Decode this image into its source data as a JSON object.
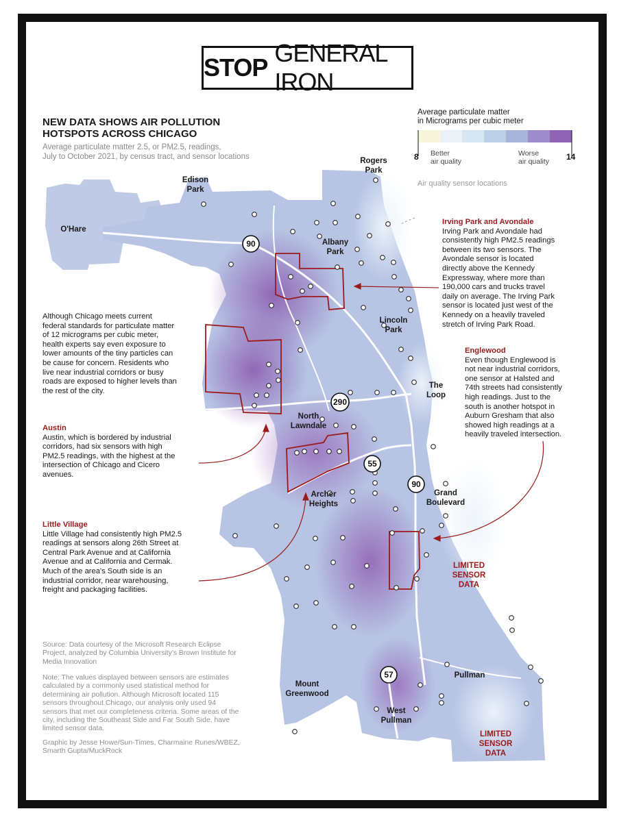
{
  "banner": {
    "bold": "STOP",
    "rest": "GENERAL IRON"
  },
  "headline": {
    "line1": "NEW DATA SHOWS AIR POLLUTION",
    "line2": "HOTSPOTS ACROSS CHICAGO"
  },
  "subhead": {
    "line1": "Average particulate matter 2.5, or PM2.5, readings,",
    "line2": "July to October 2021, by census tract, and sensor locations"
  },
  "legend": {
    "title1": "Average particulate matter",
    "title2": "in Micrograms per cubic meter",
    "min": "8",
    "max": "14",
    "better1": "Better",
    "better2": "air quality",
    "worse1": "Worse",
    "worse2": "air quality",
    "colors": [
      "#f7f6dd",
      "#eaf2f8",
      "#d6e6f2",
      "#bccfe8",
      "#a8b4dc",
      "#9d8bcc",
      "#8f64b4"
    ],
    "sensor_label": "Air quality sensor locations"
  },
  "places": {
    "rogers1": "Rogers",
    "rogers2": "Park",
    "edison1": "Edison",
    "edison2": "Park",
    "ohare": "O'Hare",
    "albany1": "Albany",
    "albany2": "Park",
    "lincoln1": "Lincoln",
    "lincoln2": "Park",
    "loop1": "The",
    "loop2": "Loop",
    "northlawndale1": "North",
    "northlawndale2": "Lawndale",
    "archer1": "Archer",
    "archer2": "Heights",
    "grand1": "Grand",
    "grand2": "Boulevard",
    "mountg1": "Mount",
    "mountg2": "Greenwood",
    "pullman": "Pullman",
    "westp1": "West",
    "westp2": "Pullman",
    "limited_a1": "LIMITED",
    "limited_a2": "SENSOR",
    "limited_a3": "DATA",
    "limited_b1": "LIMITED",
    "limited_b2": "SENSOR",
    "limited_b3": "DATA"
  },
  "highways": {
    "i90_north": "90",
    "i290": "290",
    "i55": "55",
    "i90_south": "90",
    "i57": "57"
  },
  "intro_text": [
    "Although Chicago meets current",
    "federal standards for particulate matter",
    "of 12 micrograms per cubic meter,",
    "health experts say even exposure to",
    "lower amounts of the tiny particles can",
    "be cause for concern. Residents who",
    "live near industrial corridors or busy",
    "roads are exposed to higher levels than",
    "the rest of the city."
  ],
  "austin": {
    "title": "Austin",
    "lines": [
      "Austin, which is bordered by industrial",
      "corridors, had six sensors with high",
      "PM2.5 readings, with the highest at the",
      "intersection of Chicago and Cicero",
      "avenues."
    ]
  },
  "little_village": {
    "title": "Little Village",
    "lines": [
      "Little Village had consistently high PM2.5",
      "readings at sensors along 26th Street at",
      "Central Park Avenue and at California",
      "Avenue and at California and Cermak.",
      "Much of the area's South side is an",
      "industrial corridor, near warehousing,",
      "freight and packaging facilities."
    ]
  },
  "irving": {
    "title": "Irving Park and Avondale",
    "lines": [
      "Irving Park and Avondale had",
      "consistently high PM2.5 readings",
      "between its two sensors. The",
      "Avondale sensor is located",
      "directly above the Kennedy",
      "Expressway, where more than",
      "190,000 cars and trucks travel",
      "daily on average. The Irving Park",
      "sensor is located just west of the",
      "Kennedy on a heavily traveled",
      "stretch of Irving Park Road."
    ]
  },
  "englewood": {
    "title": "Englewood",
    "lines": [
      "Even though Englewood is",
      "not near industrial corridors,",
      "one sensor at Halsted and",
      "74th streets had consistently",
      "high  readings. Just to the",
      "south is another hotspot in",
      "Auburn Gresham that also",
      "showed high readings at a",
      "heavily traveled intersection."
    ]
  },
  "source": [
    "Source: Data courtesy of the Microsoft Research Eclipse",
    "Project, analyzed by Columbia University's Brown Institute for",
    "Media Innovation"
  ],
  "note": [
    "Note: The values displayed between sensors are estimates",
    "calculated by a commonly used statistical method for",
    "determining air pollution. Although Microsoft located 115",
    "sensors throughout Chicago, our analysis only used 94",
    "sensors that met our completeness criteria. Some areas of the",
    "city, including the Southeast Side and Far South Side, have",
    "limited sensor data."
  ],
  "credit": [
    "Graphic by Jesse Howe/Sun-Times, Charmaine Runes/WBEZ,",
    "Smarth Gupta/MuckRock"
  ]
}
